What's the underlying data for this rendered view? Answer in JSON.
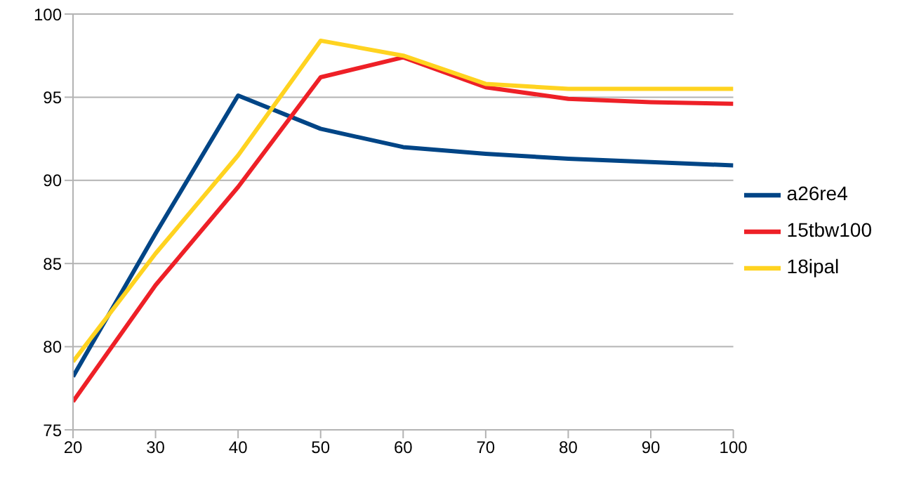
{
  "chart_data": {
    "type": "line",
    "x": [
      20,
      30,
      40,
      50,
      60,
      70,
      80,
      90,
      100
    ],
    "series": [
      {
        "name": "a26re4",
        "color": "#004586",
        "values": [
          78.2,
          86.8,
          95.1,
          93.1,
          92.0,
          91.6,
          91.3,
          91.1,
          90.9
        ]
      },
      {
        "name": "15tbw100",
        "color": "#ee2027",
        "values": [
          76.7,
          83.7,
          89.6,
          96.2,
          97.4,
          95.6,
          94.9,
          94.7,
          94.6
        ]
      },
      {
        "name": "18ipal",
        "color": "#ffd320",
        "values": [
          79.1,
          85.6,
          91.5,
          98.4,
          97.5,
          95.8,
          95.5,
          95.5,
          95.5
        ]
      }
    ],
    "xlim": [
      20,
      100
    ],
    "xticks": [
      20,
      30,
      40,
      50,
      60,
      70,
      80,
      90,
      100
    ],
    "ylim": [
      75,
      100
    ],
    "yticks": [
      75,
      80,
      85,
      90,
      95,
      100
    ],
    "grid": "y",
    "legend": "right",
    "marker": "none",
    "line_style": "solid"
  }
}
